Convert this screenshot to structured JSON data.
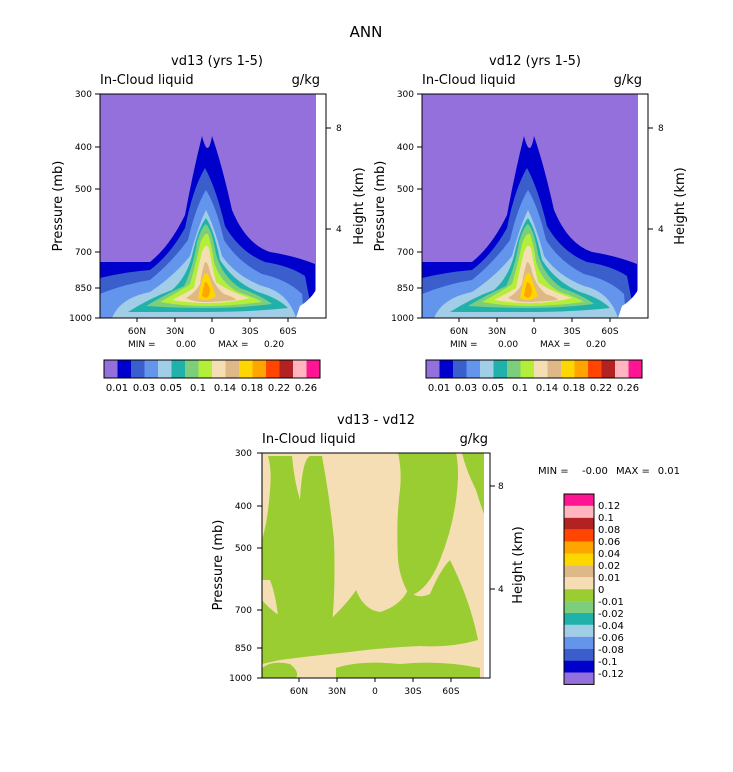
{
  "figure_title": "ANN",
  "chart_data": [
    {
      "type": "heatmap",
      "title": "vd13 (yrs 1-5)",
      "variable": "In-Cloud liquid",
      "units": "g/kg",
      "ylabel": "Pressure (mb)",
      "ylabel_right": "Height (km)",
      "y_ticks": [
        "300",
        "400",
        "500",
        "700",
        "850",
        "1000"
      ],
      "y_ticks_right": [
        "8",
        "4"
      ],
      "x_ticks": [
        "60N",
        "30N",
        "0",
        "30S",
        "60S"
      ],
      "ylim": [
        1000,
        300
      ],
      "xlim": [
        90,
        -90
      ],
      "min_label": "MIN =",
      "min_value": "0.00",
      "max_label": "MAX =",
      "max_value": "0.20",
      "colorbar": {
        "orientation": "horizontal",
        "levels": [
          "0.01",
          "0.03",
          "0.05",
          "0.1",
          "0.14",
          "0.18",
          "0.22",
          "0.26"
        ],
        "colors": [
          "#9370db",
          "#0000cd",
          "#3a5fcd",
          "#6495ed",
          "#a2cde6",
          "#20b2aa",
          "#7ccd7c",
          "#b3ee3a",
          "#f5deb3",
          "#deb887",
          "#ffd700",
          "#ffa500",
          "#ff4500",
          "#b22222",
          "#ffb6c1",
          "#ff1493"
        ]
      },
      "peak_region": {
        "lat_range": [
          "30N",
          "30S"
        ],
        "max_value": 0.2,
        "peak_pressure": 850
      }
    },
    {
      "type": "heatmap",
      "title": "vd12 (yrs 1-5)",
      "variable": "In-Cloud liquid",
      "units": "g/kg",
      "ylabel": "Pressure (mb)",
      "ylabel_right": "Height (km)",
      "y_ticks": [
        "300",
        "400",
        "500",
        "700",
        "850",
        "1000"
      ],
      "y_ticks_right": [
        "8",
        "4"
      ],
      "x_ticks": [
        "60N",
        "30N",
        "0",
        "30S",
        "60S"
      ],
      "ylim": [
        1000,
        300
      ],
      "xlim": [
        90,
        -90
      ],
      "min_label": "MIN =",
      "min_value": "0.00",
      "max_label": "MAX =",
      "max_value": "0.20",
      "colorbar": {
        "orientation": "horizontal",
        "levels": [
          "0.01",
          "0.03",
          "0.05",
          "0.1",
          "0.14",
          "0.18",
          "0.22",
          "0.26"
        ],
        "colors": [
          "#9370db",
          "#0000cd",
          "#3a5fcd",
          "#6495ed",
          "#a2cde6",
          "#20b2aa",
          "#7ccd7c",
          "#b3ee3a",
          "#f5deb3",
          "#deb887",
          "#ffd700",
          "#ffa500",
          "#ff4500",
          "#b22222",
          "#ffb6c1",
          "#ff1493"
        ]
      },
      "peak_region": {
        "lat_range": [
          "30N",
          "30S"
        ],
        "max_value": 0.2,
        "peak_pressure": 850
      }
    },
    {
      "type": "heatmap",
      "title": "vd13 - vd12",
      "variable": "In-Cloud liquid",
      "units": "g/kg",
      "ylabel": "Pressure (mb)",
      "ylabel_right": "Height (km)",
      "y_ticks": [
        "300",
        "400",
        "500",
        "700",
        "850",
        "1000"
      ],
      "y_ticks_right": [
        "8",
        "4"
      ],
      "x_ticks": [
        "60N",
        "30N",
        "0",
        "30S",
        "60S"
      ],
      "ylim": [
        1000,
        300
      ],
      "xlim": [
        90,
        -90
      ],
      "min_label": "MIN =",
      "min_value": "-0.00",
      "max_label": "MAX =",
      "max_value": "0.01",
      "colorbar": {
        "orientation": "vertical",
        "levels": [
          "0.12",
          "0.1",
          "0.08",
          "0.06",
          "0.04",
          "0.02",
          "0.01",
          "0",
          "-0.01",
          "-0.02",
          "-0.04",
          "-0.06",
          "-0.08",
          "-0.1",
          "-0.12"
        ],
        "colors": [
          "#ff1493",
          "#ffb6c1",
          "#b22222",
          "#ff4500",
          "#ffa500",
          "#ffd700",
          "#deb887",
          "#f5deb3",
          "#9acd32",
          "#7ccd7c",
          "#20b2aa",
          "#a2cde6",
          "#6495ed",
          "#3a5fcd",
          "#0000cd",
          "#9370db"
        ]
      },
      "fill_categories": [
        "0 to 0.01",
        "-0.01 to 0"
      ]
    }
  ]
}
